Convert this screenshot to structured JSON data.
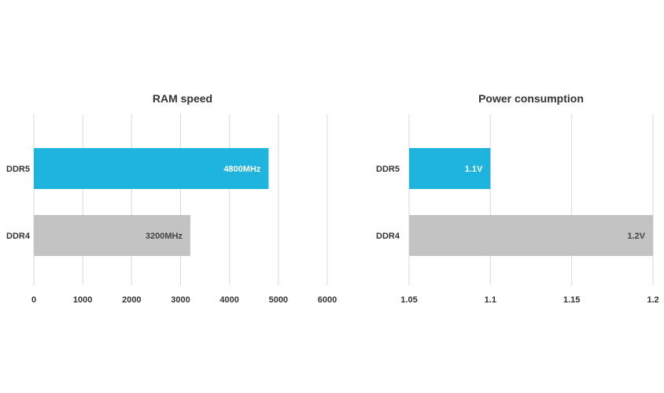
{
  "chart_data": [
    {
      "type": "bar",
      "orientation": "horizontal",
      "title": "RAM speed",
      "categories": [
        "DDR5",
        "DDR4"
      ],
      "values": [
        4800,
        3200
      ],
      "data_labels": [
        "4800MHz",
        "3200MHz"
      ],
      "bar_colors": [
        "#1fb4dd",
        "#c3c3c3"
      ],
      "label_colors": [
        "#ffffff",
        "#444444"
      ],
      "xlim": [
        0,
        6000
      ],
      "xticks": [
        "0",
        "1000",
        "2000",
        "3000",
        "4000",
        "5000",
        "6000"
      ],
      "grid": true
    },
    {
      "type": "bar",
      "orientation": "horizontal",
      "title": "Power  consumption",
      "categories": [
        "DDR5",
        "DDR4"
      ],
      "values": [
        1.1,
        1.2
      ],
      "data_labels": [
        "1.1V",
        "1.2V"
      ],
      "bar_colors": [
        "#1fb4dd",
        "#c3c3c3"
      ],
      "label_colors": [
        "#ffffff",
        "#444444"
      ],
      "xlim": [
        1.05,
        1.2
      ],
      "xticks": [
        "1.05",
        "1.1",
        "1.15",
        "1.2"
      ],
      "grid": true
    }
  ]
}
